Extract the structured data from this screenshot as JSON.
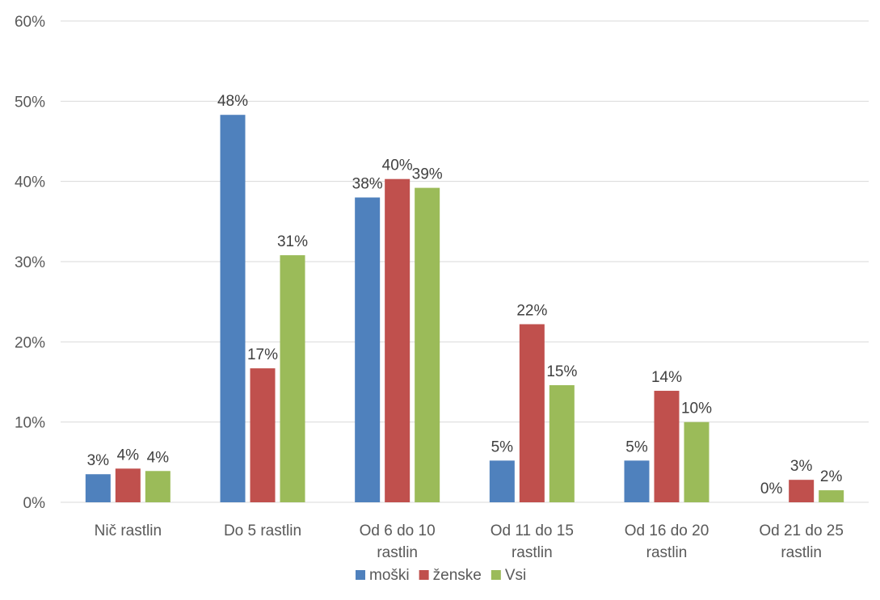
{
  "chart_data": {
    "type": "bar",
    "categories": [
      [
        "Nič rastlin"
      ],
      [
        "Do 5 rastlin"
      ],
      [
        "Od 6 do 10",
        "rastlin"
      ],
      [
        "Od 11 do 15",
        "rastlin"
      ],
      [
        "Od 16 do 20",
        "rastlin"
      ],
      [
        "Od 21 do 25",
        "rastlin"
      ]
    ],
    "series": [
      {
        "name": "moški",
        "color": "#4f81bd",
        "values": [
          3.5,
          48.3,
          38.0,
          5.2,
          5.2,
          0
        ],
        "labels": [
          "3%",
          "48%",
          "38%",
          "5%",
          "5%",
          "0%"
        ]
      },
      {
        "name": "ženske",
        "color": "#c0504d",
        "values": [
          4.2,
          16.7,
          40.3,
          22.2,
          13.9,
          2.8
        ],
        "labels": [
          "4%",
          "17%",
          "40%",
          "22%",
          "14%",
          "3%"
        ]
      },
      {
        "name": "Vsi",
        "color": "#9bbb59",
        "values": [
          3.9,
          30.8,
          39.2,
          14.6,
          10.0,
          1.5
        ],
        "labels": [
          "4%",
          "31%",
          "39%",
          "15%",
          "10%",
          "2%"
        ]
      }
    ],
    "yticks": [
      "0%",
      "10%",
      "20%",
      "30%",
      "40%",
      "50%",
      "60%"
    ],
    "ylim": [
      0,
      60
    ],
    "grid": true,
    "legend_position": "bottom",
    "title": "",
    "xlabel": "",
    "ylabel": ""
  }
}
